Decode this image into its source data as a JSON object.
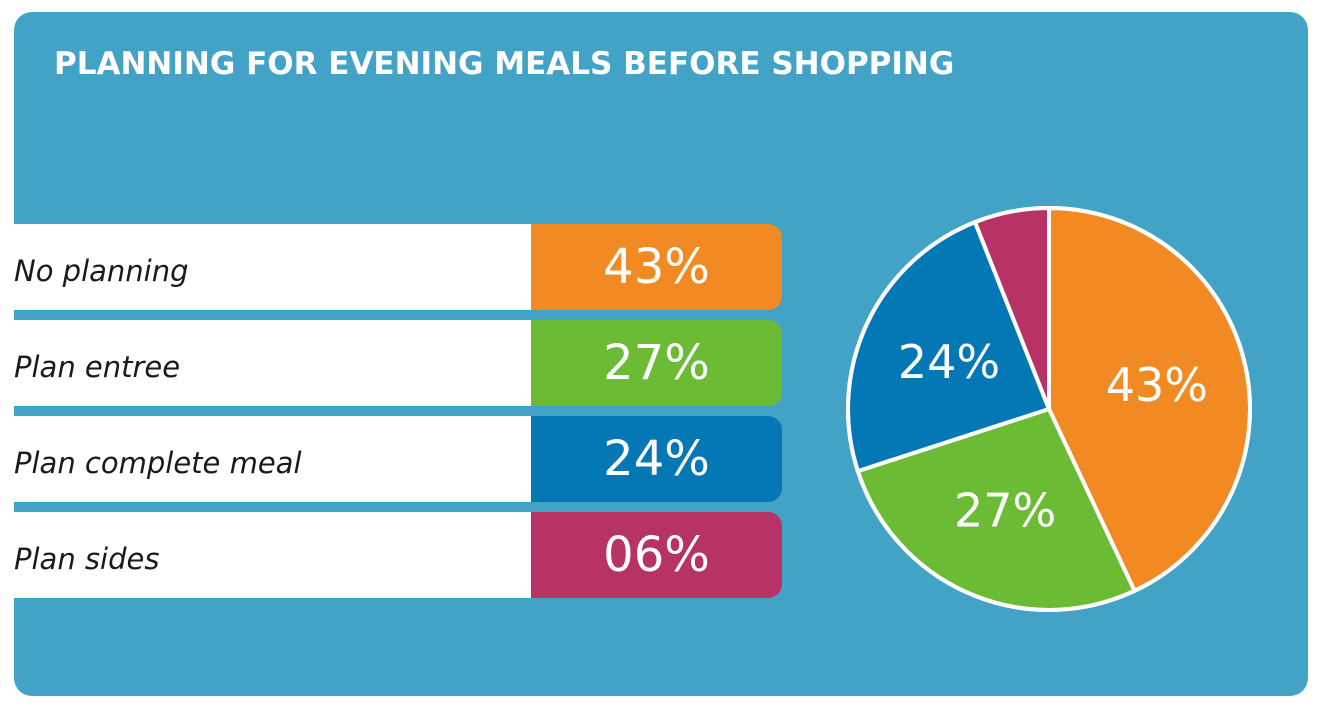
{
  "chart_data": {
    "type": "pie",
    "title": "PLANNING FOR EVENING MEALS BEFORE SHOPPING",
    "categories": [
      "No planning",
      "Plan entree",
      "Plan complete meal",
      "Plan sides"
    ],
    "values": [
      43,
      27,
      24,
      6
    ],
    "value_labels": [
      "43%",
      "27%",
      "24%",
      "06%"
    ],
    "pie_labels": [
      "43%",
      "27%",
      "24%",
      ""
    ],
    "colors": [
      "#f28a24",
      "#6cbb35",
      "#0478b5",
      "#b73265"
    ],
    "background": "#43a3c6"
  }
}
